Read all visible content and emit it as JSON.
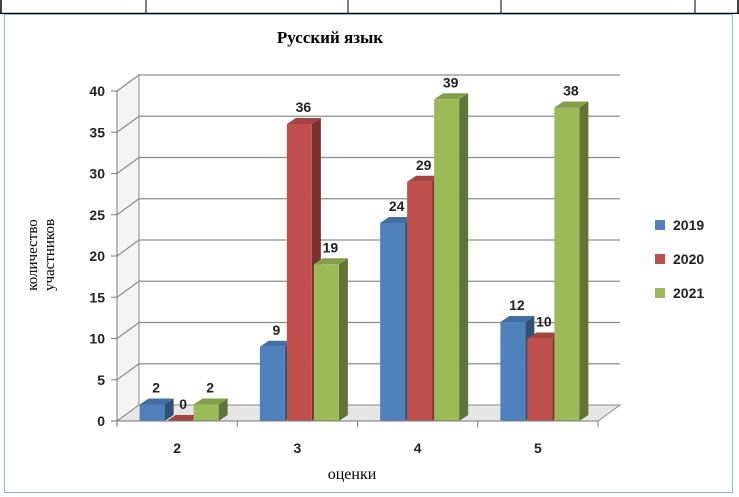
{
  "chart_data": {
    "type": "bar",
    "title": "Русский язык",
    "xlabel": "оценки",
    "ylabel_lines": [
      "количество",
      "участников"
    ],
    "categories": [
      "2",
      "3",
      "4",
      "5"
    ],
    "series": [
      {
        "name": "2019",
        "values": [
          2,
          9,
          24,
          12
        ],
        "color": "#4f81bd"
      },
      {
        "name": "2020",
        "values": [
          0,
          36,
          29,
          10
        ],
        "color": "#c0504d"
      },
      {
        "name": "2021",
        "values": [
          2,
          19,
          39,
          38
        ],
        "color": "#9bbb59"
      }
    ],
    "ylim": [
      0,
      40
    ],
    "yticks": [
      0,
      5,
      10,
      15,
      20,
      25,
      30,
      35,
      40
    ],
    "grid": true,
    "legend": "right",
    "three_d": true
  }
}
